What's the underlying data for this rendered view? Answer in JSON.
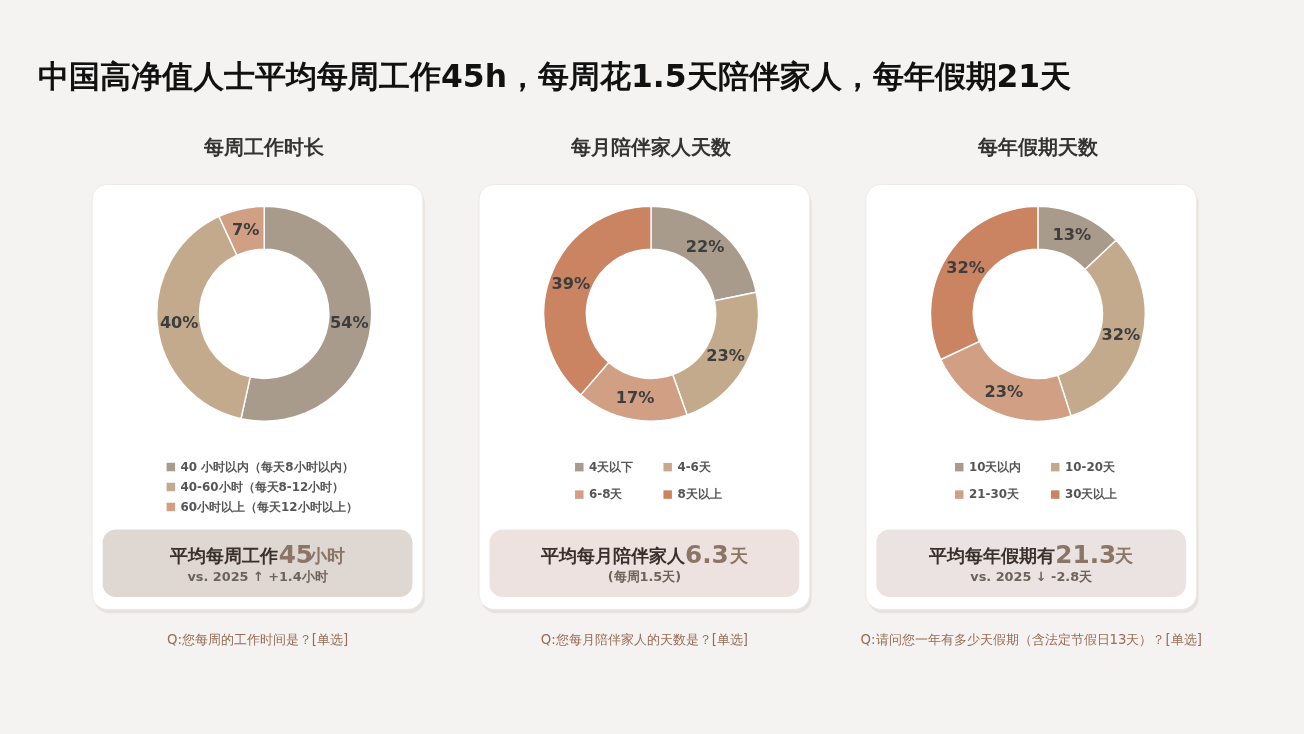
{
  "chart_data": [
    {
      "type": "other",
      "title": "中国高净值人士平均每周工作45h，每周花1.5天陪伴家人，每年假期21天"
    },
    {
      "type": "donut",
      "title": "每周工作时长",
      "categories": [
        "40 小时以内（每天8小时以内）",
        "40-60小时（每天8-12小时）",
        "60小时以上（每天12小时以上）"
      ],
      "values": [
        54,
        40,
        7
      ],
      "value_labels": [
        "54%",
        "40%",
        "7%"
      ],
      "colors": [
        "#a99b8b",
        "#c4aa8d",
        "#d19f83"
      ],
      "legend": "bottom",
      "annotations": [
        "平均每周工作45小时",
        "vs. 2025 ↑ +1.4小时",
        "Q:您每周的工作时间是？[单选]"
      ]
    },
    {
      "type": "donut",
      "title": "每月陪伴家人天数",
      "categories": [
        "4天以下",
        "4-6天",
        "6-8天",
        "8天以上"
      ],
      "values": [
        22,
        23,
        17,
        39
      ],
      "value_labels": [
        "22%",
        "23%",
        "17%",
        "39%"
      ],
      "colors": [
        "#a99b8b",
        "#c4aa8d",
        "#d19f83",
        "#cb8462"
      ],
      "legend": "bottom",
      "annotations": [
        "平均每月陪伴家人6.3天",
        "(每周1.5天)",
        "Q:您每月陪伴家人的天数是？[单选]"
      ]
    },
    {
      "type": "donut",
      "title": "每年假期天数",
      "categories": [
        "10天以内",
        "10-20天",
        "21-30天",
        "30天以上"
      ],
      "values": [
        13,
        32,
        23,
        32
      ],
      "value_labels": [
        "13%",
        "32%",
        "23%",
        "32%"
      ],
      "colors": [
        "#a99b8b",
        "#c4aa8d",
        "#d19f83",
        "#cb8462"
      ],
      "legend": "bottom",
      "annotations": [
        "平均每年假期有21.3天",
        "vs. 2025 ↓ -2.8天",
        "Q:请问您一年有多少天假期（含法定节假日13天）？[单选]"
      ]
    }
  ]
}
